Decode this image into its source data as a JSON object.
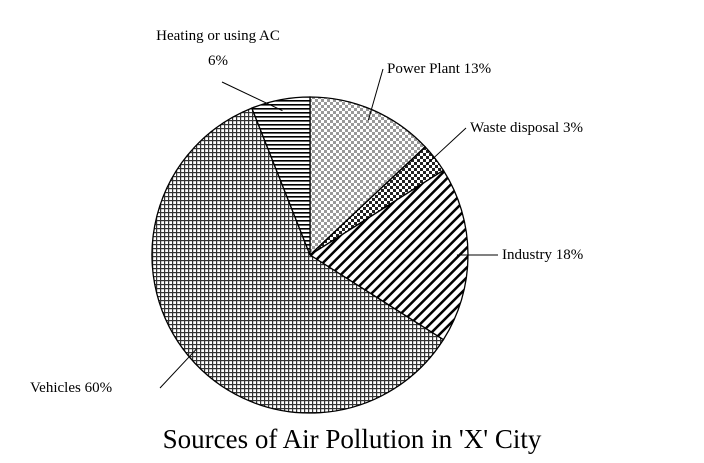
{
  "chart_data": {
    "type": "pie",
    "title": "Sources of Air Pollution in 'X' City",
    "categories": [
      "Power Plant",
      "Waste disposal",
      "Industry",
      "Vehicles",
      "Heating or using AC"
    ],
    "values": [
      13,
      3,
      18,
      60,
      6
    ],
    "value_labels": [
      "13%",
      "3%",
      "18%",
      "60%",
      "6%"
    ]
  }
}
